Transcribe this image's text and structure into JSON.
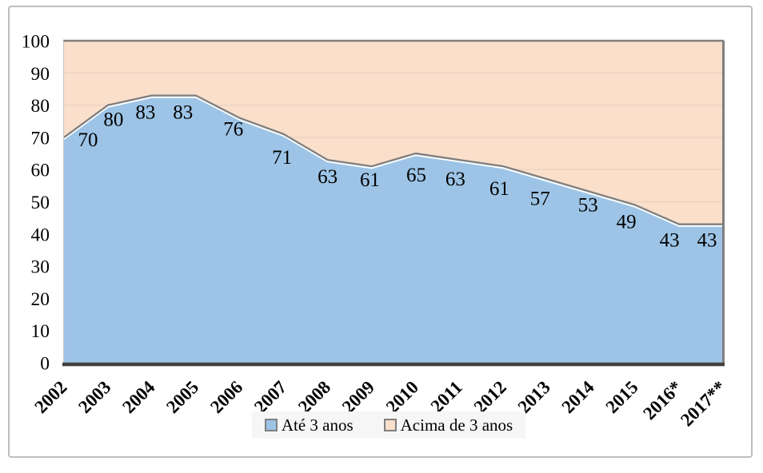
{
  "chart_data": {
    "type": "area",
    "stacked": true,
    "stacked_to_100_percent": true,
    "title": "",
    "xlabel": "",
    "ylabel": "",
    "categories": [
      "2002",
      "2003",
      "2004",
      "2005",
      "2006",
      "2007",
      "2008",
      "2009",
      "2010",
      "2011",
      "2012",
      "2013",
      "2014",
      "2015",
      "2016*",
      "2017**"
    ],
    "series": [
      {
        "name": "Até 3 anos",
        "color": "#9dc4e6",
        "values": [
          70,
          80,
          83,
          83,
          76,
          71,
          63,
          61,
          65,
          63,
          61,
          57,
          53,
          49,
          43,
          43
        ],
        "data_labels_shown": true
      },
      {
        "name": "Acima de 3 anos",
        "color": "#fadfcb",
        "values": [
          30,
          20,
          17,
          17,
          24,
          29,
          37,
          39,
          35,
          37,
          39,
          43,
          47,
          51,
          57,
          57
        ],
        "data_labels_shown": false
      }
    ],
    "ylim": [
      0,
      100
    ],
    "yticks": [
      0,
      10,
      20,
      30,
      40,
      50,
      60,
      70,
      80,
      90,
      100
    ],
    "grid": "horizontal-faint",
    "legend_position": "bottom-center"
  },
  "legend": {
    "items": [
      {
        "label": "Até 3 anos",
        "color": "#9dc4e6"
      },
      {
        "label": "Acima de 3 anos",
        "color": "#fadfcb"
      }
    ]
  },
  "colors": {
    "series_1_fill": "#9dc4e6",
    "series_2_fill": "#fadfcb",
    "boundary_line": "#7f7f7f",
    "boundary_highlight": "#ffffff",
    "gridline": "#eed4c2",
    "plot_border": "#7f7f7f",
    "left_axis_line": "#c8c8c8",
    "bottom_axis_line": "#3f3f3f",
    "frame_border": "#bdbdbd",
    "legend_background": "#f6f6f6",
    "text": "#000000",
    "background": "#ffffff"
  }
}
